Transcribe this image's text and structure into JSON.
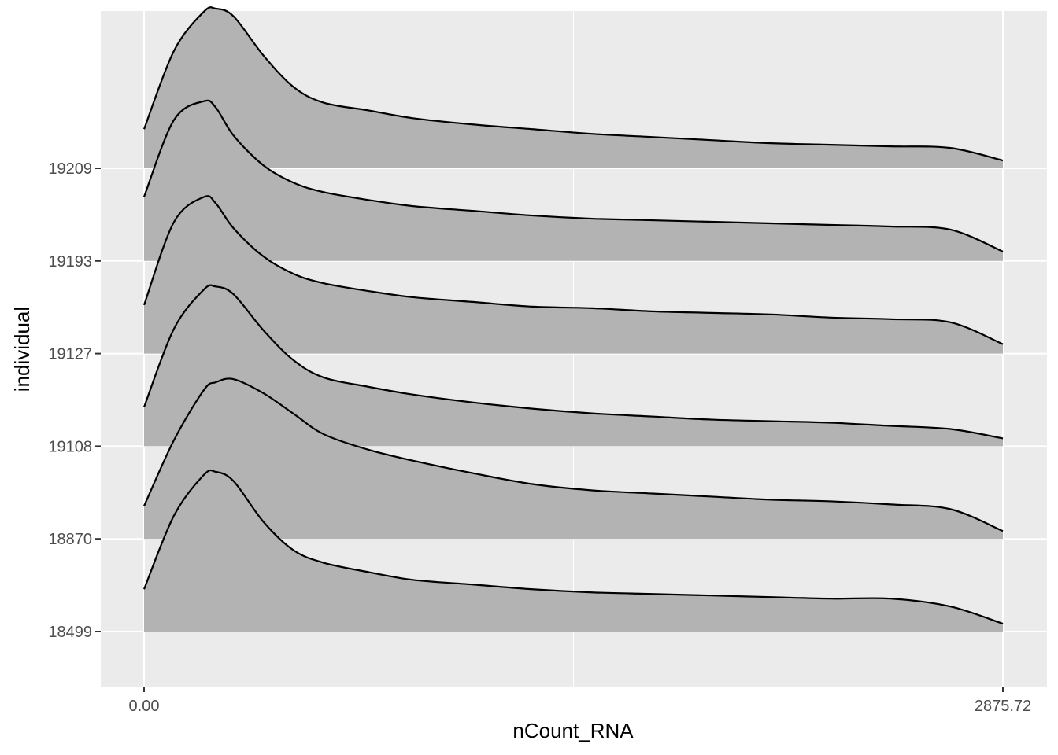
{
  "chart_data": {
    "type": "ridgeline",
    "title": "",
    "xlabel": "nCount_RNA",
    "ylabel": "individual",
    "xlim": [
      -145,
      2875.72
    ],
    "x_ticks": [
      {
        "value": 0,
        "label": "0.00"
      },
      {
        "value": 2875.72,
        "label": "2875.72"
      }
    ],
    "x_minor_gridlines": [
      1437.86
    ],
    "grid": true,
    "ridge_scale_in_category_units": 1,
    "categories": [
      "18499",
      "18870",
      "19108",
      "19127",
      "19193",
      "19209"
    ],
    "density_x": [
      0,
      100,
      200,
      240,
      300,
      400,
      500,
      600,
      750,
      900,
      1100,
      1300,
      1500,
      1700,
      1900,
      2100,
      2300,
      2500,
      2700,
      2875.72
    ],
    "series": [
      {
        "name": "18499",
        "density": [
          0.27,
          0.74,
          1.0,
          1.02,
          0.96,
          0.7,
          0.52,
          0.44,
          0.38,
          0.33,
          0.3,
          0.27,
          0.25,
          0.24,
          0.23,
          0.22,
          0.21,
          0.21,
          0.16,
          0.05
        ]
      },
      {
        "name": "18870",
        "density": [
          0.21,
          0.63,
          0.95,
          1.0,
          1.02,
          0.93,
          0.8,
          0.67,
          0.57,
          0.5,
          0.42,
          0.35,
          0.31,
          0.29,
          0.27,
          0.25,
          0.24,
          0.22,
          0.19,
          0.05
        ]
      },
      {
        "name": "19108",
        "density": [
          0.25,
          0.75,
          1.0,
          1.02,
          0.97,
          0.74,
          0.55,
          0.44,
          0.38,
          0.33,
          0.28,
          0.24,
          0.21,
          0.19,
          0.17,
          0.16,
          0.15,
          0.13,
          0.11,
          0.05
        ]
      },
      {
        "name": "19127",
        "density": [
          0.31,
          0.84,
          1.0,
          0.96,
          0.8,
          0.62,
          0.51,
          0.45,
          0.4,
          0.36,
          0.33,
          0.3,
          0.29,
          0.27,
          0.26,
          0.25,
          0.23,
          0.22,
          0.2,
          0.06
        ]
      },
      {
        "name": "19193",
        "density": [
          0.41,
          0.9,
          1.02,
          0.98,
          0.8,
          0.61,
          0.5,
          0.44,
          0.39,
          0.35,
          0.32,
          0.29,
          0.27,
          0.26,
          0.25,
          0.24,
          0.23,
          0.22,
          0.2,
          0.06
        ]
      },
      {
        "name": "19209",
        "density": [
          0.25,
          0.75,
          1.0,
          1.02,
          0.97,
          0.72,
          0.52,
          0.42,
          0.37,
          0.32,
          0.28,
          0.25,
          0.22,
          0.2,
          0.18,
          0.16,
          0.15,
          0.14,
          0.13,
          0.05
        ]
      }
    ],
    "colors": {
      "panel": "#EBEBEB",
      "grid": "#FFFFFF",
      "fill": "#B3B3B3",
      "line": "#000000",
      "tick": "#333333",
      "tick_label": "#4D4D4D"
    }
  }
}
